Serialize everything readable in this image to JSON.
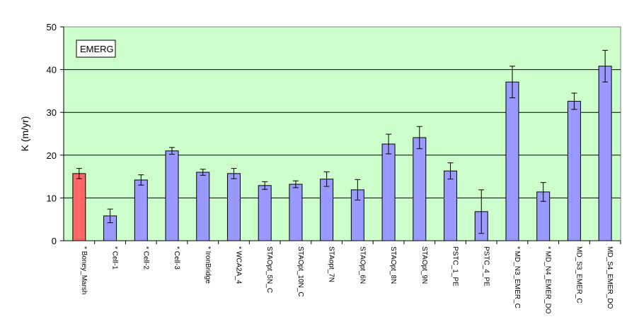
{
  "chart_data": {
    "type": "bar",
    "title": "",
    "xlabel": "",
    "ylabel": "K (m/yr)",
    "ylim": [
      0,
      50
    ],
    "yticks": [
      0,
      10,
      20,
      30,
      40,
      50
    ],
    "grid": true,
    "plot_background": "#ccffcc",
    "annotation": "EMERG",
    "annotation_position": "top-left",
    "categories": [
      "* Boney_Marsh",
      "* Cell-1",
      "* Cell-2",
      "* Cell-3",
      "* IronBridge",
      "* WCA2A_4",
      "STAOpt_5N_C",
      "STAOpt_10N_C",
      "STAopt_7N",
      "STAOpt_6N",
      "STAOpt_8N",
      "STAOpt_9N",
      "PSTC_1_PE",
      "PSTC_4_PE",
      "* MD_N3_EMER_C",
      "* MD_N4_EMER_DO",
      "MD_S3_EMER_C",
      "MD_S4_EMER_DO"
    ],
    "values": [
      15.7,
      5.8,
      14.2,
      21.0,
      16.0,
      15.7,
      12.9,
      13.2,
      14.4,
      11.9,
      22.6,
      24.1,
      16.3,
      6.8,
      37.1,
      11.4,
      32.6,
      40.8
    ],
    "errors": [
      1.2,
      1.6,
      1.2,
      0.8,
      0.7,
      1.2,
      0.9,
      0.8,
      1.7,
      2.4,
      2.3,
      2.6,
      1.9,
      5.1,
      3.7,
      2.2,
      1.9,
      3.7
    ],
    "colors": [
      "#ff6666",
      "#9999ff",
      "#9999ff",
      "#9999ff",
      "#9999ff",
      "#9999ff",
      "#9999ff",
      "#9999ff",
      "#9999ff",
      "#9999ff",
      "#9999ff",
      "#9999ff",
      "#9999ff",
      "#9999ff",
      "#9999ff",
      "#9999ff",
      "#9999ff",
      "#9999ff"
    ]
  }
}
